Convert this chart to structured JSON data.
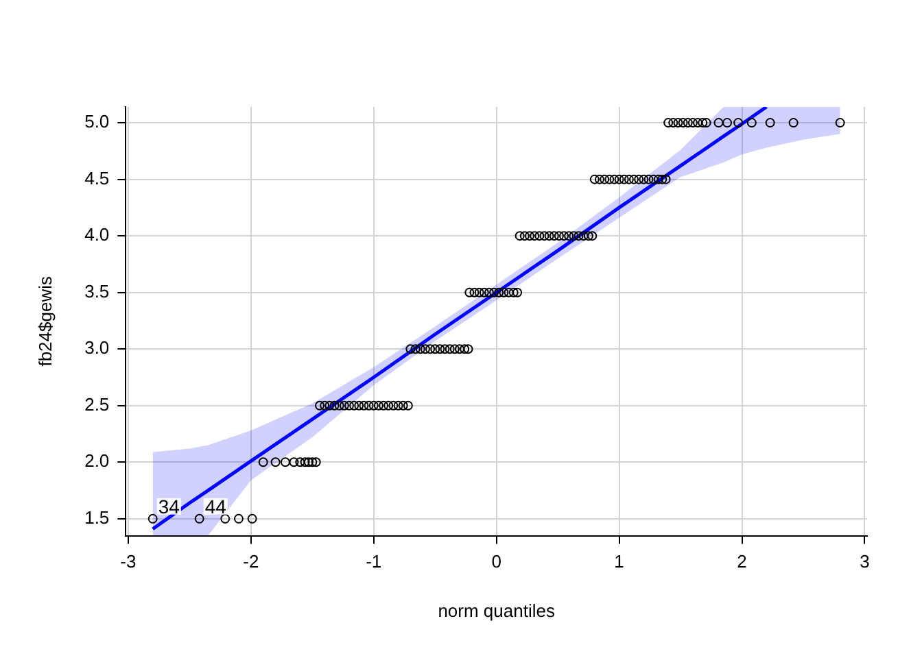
{
  "chart_data": {
    "type": "scatter",
    "xlabel": "norm quantiles",
    "ylabel": "fb24$gewis",
    "xlim": [
      -3.02,
      3.02
    ],
    "ylim": [
      1.35,
      5.14
    ],
    "xticks": [
      -3,
      -2,
      -1,
      0,
      1,
      2,
      3
    ],
    "yticks": [
      1.5,
      {
        "value": 2,
        "label": "2.0"
      },
      2.5,
      {
        "value": 3,
        "label": "3.0"
      },
      3.5,
      {
        "value": 4,
        "label": "4.0"
      },
      4.5,
      {
        "value": 5,
        "label": "5.0"
      }
    ],
    "grid": true,
    "legend": false,
    "annotations": [
      {
        "text": "34",
        "x": -2.8,
        "y": 1.5
      },
      {
        "text": "44",
        "x": -2.42,
        "y": 1.5
      }
    ],
    "series": [
      {
        "type": "scatter",
        "color": "#000000",
        "marker": "circle",
        "x": [
          -2.8,
          -2.42,
          -2.21,
          -2.1,
          -1.99,
          -1.9,
          -1.8,
          -1.72,
          -1.65,
          -1.6,
          -1.56,
          -1.53,
          -1.5,
          -1.47,
          -1.44,
          -1.4,
          -1.36,
          -1.32,
          -1.28,
          -1.24,
          -1.2,
          -1.16,
          -1.12,
          -1.08,
          -1.04,
          -1.0,
          -0.96,
          -0.92,
          -0.88,
          -0.84,
          -0.8,
          -0.76,
          -0.72,
          -0.7,
          -0.66,
          -0.62,
          -0.58,
          -0.54,
          -0.5,
          -0.46,
          -0.42,
          -0.38,
          -0.34,
          -0.3,
          -0.26,
          -0.23,
          -0.22,
          -0.18,
          -0.14,
          -0.1,
          -0.06,
          -0.02,
          0.02,
          0.06,
          0.1,
          0.14,
          0.17,
          0.19,
          0.23,
          0.27,
          0.31,
          0.35,
          0.39,
          0.43,
          0.47,
          0.51,
          0.55,
          0.59,
          0.63,
          0.67,
          0.71,
          0.75,
          0.78,
          0.8,
          0.84,
          0.88,
          0.92,
          0.96,
          1.0,
          1.04,
          1.08,
          1.12,
          1.16,
          1.2,
          1.24,
          1.28,
          1.32,
          1.35,
          1.38,
          1.4,
          1.44,
          1.48,
          1.52,
          1.56,
          1.6,
          1.64,
          1.68,
          1.71,
          1.81,
          1.88,
          1.97,
          2.08,
          2.23,
          2.42,
          2.8
        ],
        "values": [
          1.5,
          1.5,
          1.5,
          1.5,
          1.5,
          2,
          2,
          2,
          2,
          2,
          2,
          2,
          2,
          2,
          2.5,
          2.5,
          2.5,
          2.5,
          2.5,
          2.5,
          2.5,
          2.5,
          2.5,
          2.5,
          2.5,
          2.5,
          2.5,
          2.5,
          2.5,
          2.5,
          2.5,
          2.5,
          2.5,
          3,
          3,
          3,
          3,
          3,
          3,
          3,
          3,
          3,
          3,
          3,
          3,
          3,
          3.5,
          3.5,
          3.5,
          3.5,
          3.5,
          3.5,
          3.5,
          3.5,
          3.5,
          3.5,
          3.5,
          4,
          4,
          4,
          4,
          4,
          4,
          4,
          4,
          4,
          4,
          4,
          4,
          4,
          4,
          4,
          4,
          4.5,
          4.5,
          4.5,
          4.5,
          4.5,
          4.5,
          4.5,
          4.5,
          4.5,
          4.5,
          4.5,
          4.5,
          4.5,
          4.5,
          4.5,
          4.5,
          5,
          5,
          5,
          5,
          5,
          5,
          5,
          5,
          5,
          5,
          5,
          5,
          5,
          5,
          5,
          5
        ]
      },
      {
        "type": "line",
        "color": "#0000ff",
        "marker": "none",
        "x": [
          -2.8,
          -2.5,
          -2.35,
          -2,
          -1.5,
          -1,
          -0.5,
          0,
          0.5,
          1,
          1.5,
          1.85,
          2,
          2.2,
          2.5,
          2.8
        ],
        "values": [
          1.41,
          1.64,
          1.75,
          2.01,
          2.38,
          2.75,
          3.13,
          3.5,
          3.87,
          4.25,
          4.62,
          4.88,
          4.99,
          5.14,
          null,
          null
        ],
        "upper": [
          2.09,
          2.12,
          2.15,
          2.28,
          2.52,
          2.84,
          3.2,
          3.57,
          3.94,
          4.34,
          4.76,
          5.14,
          5.14,
          5.14,
          5.14,
          5.14
        ],
        "lower": [
          1.35,
          1.35,
          1.35,
          1.84,
          2.22,
          2.68,
          3.07,
          3.43,
          3.8,
          4.16,
          4.52,
          4.65,
          4.72,
          4.78,
          4.85,
          4.9
        ]
      }
    ]
  }
}
